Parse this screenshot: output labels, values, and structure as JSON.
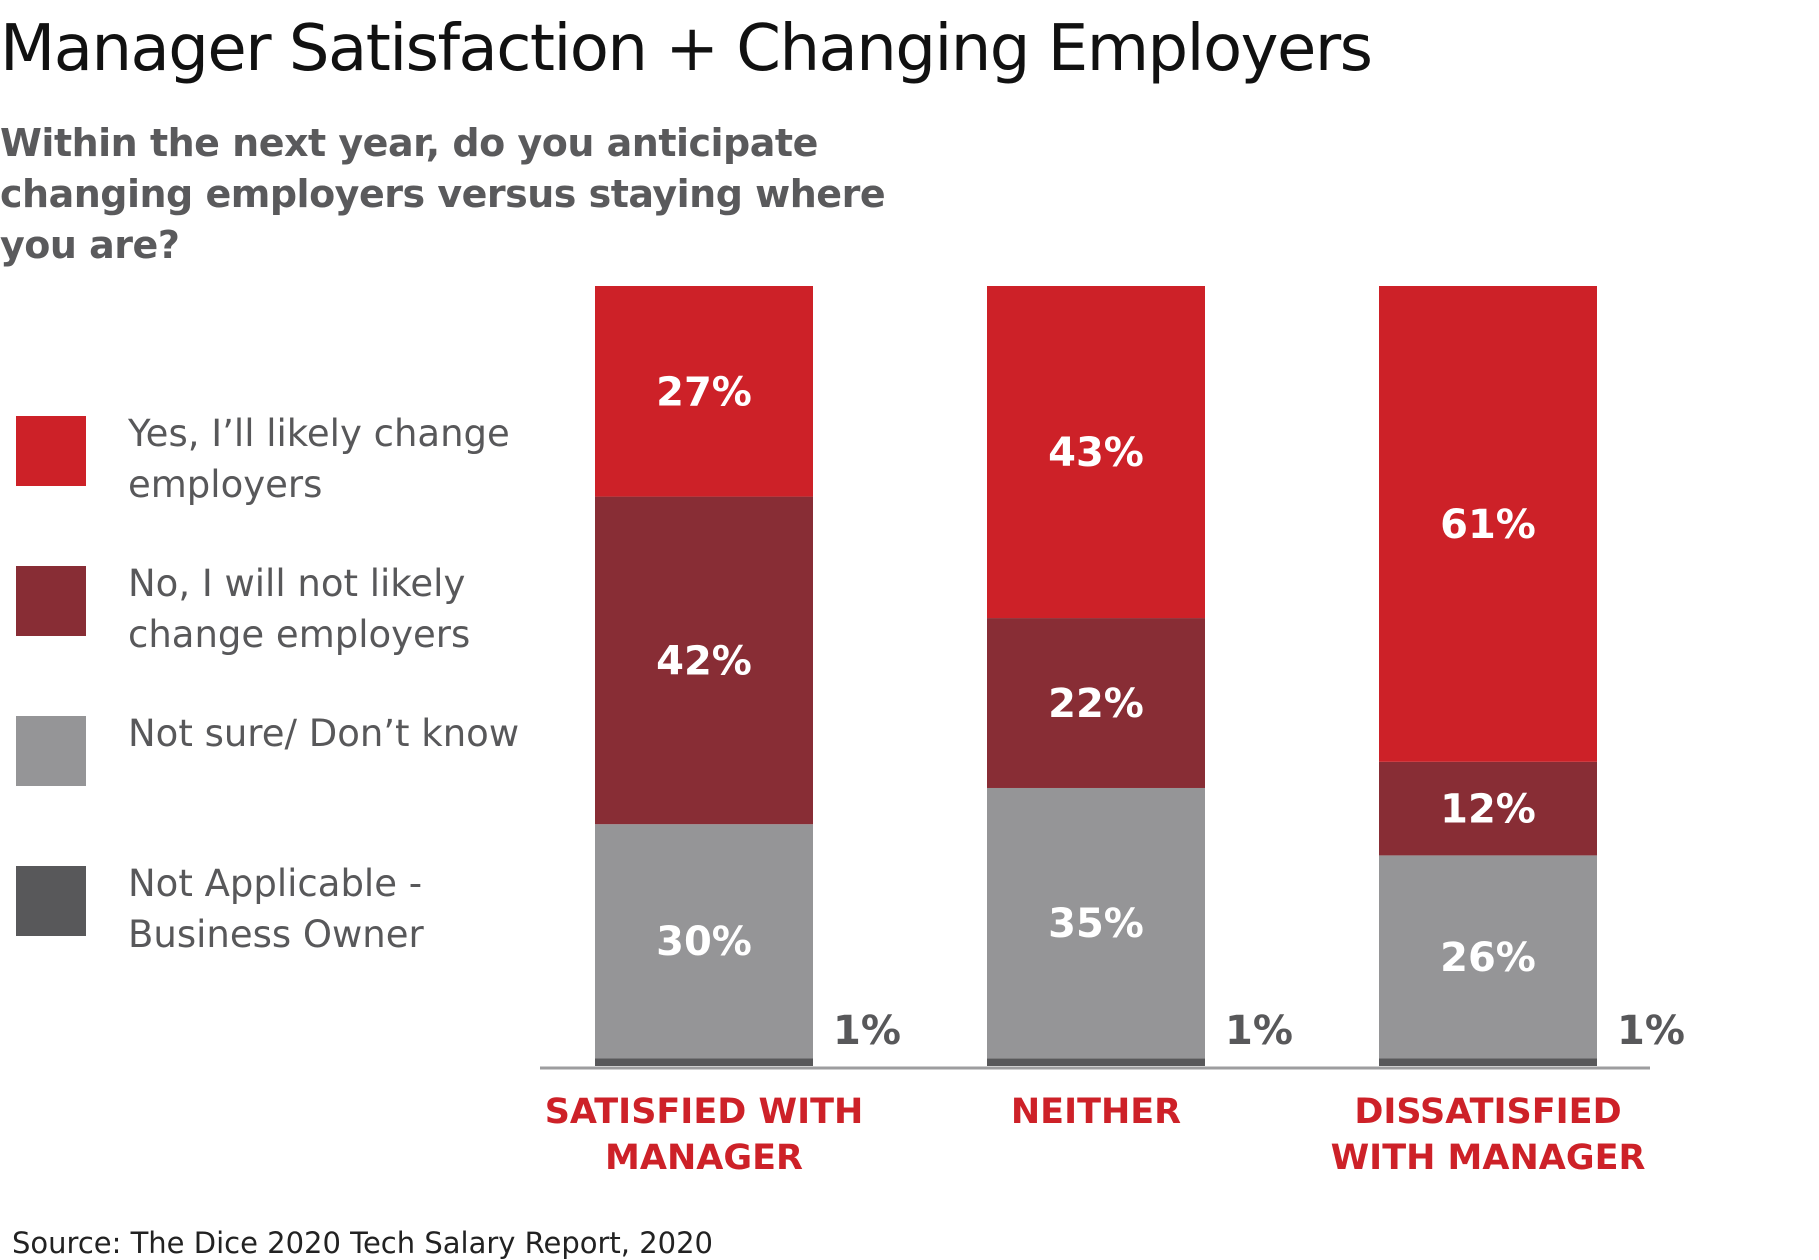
{
  "title": "Manager Satisfaction + Changing Employers",
  "subtitle": "Within the next year, do you anticipate changing employers versus staying where you are?",
  "source": "Source: The Dice 2020 Tech Salary Report, 2020",
  "colors": {
    "yes": "#cd2128",
    "no": "#882d35",
    "not_sure": "#959597",
    "not_applicable": "#58585a",
    "category_label": "#cd2128",
    "baseline": "#9d9d9f"
  },
  "legend": [
    {
      "label": "Yes, I’ll likely change employers",
      "color": "#cd2128"
    },
    {
      "label": "No, I will not likely change employers",
      "color": "#882d35"
    },
    {
      "label": "Not sure/ Don’t know",
      "color": "#959597"
    },
    {
      "label": "Not Applicable - Business Owner",
      "color": "#58585a"
    }
  ],
  "chart_data": {
    "type": "bar",
    "stacked": true,
    "categories": [
      "SATISFIED WITH MANAGER",
      "NEITHER",
      "DISSATISFIED WITH MANAGER"
    ],
    "series": [
      {
        "name": "Not Applicable - Business Owner",
        "values": [
          1,
          1,
          1
        ],
        "labels": [
          "1%",
          "1%",
          "1%"
        ]
      },
      {
        "name": "Not sure/ Don’t know",
        "values": [
          30,
          35,
          26
        ],
        "labels": [
          "30%",
          "35%",
          "26%"
        ]
      },
      {
        "name": "No, I will not likely change employers",
        "values": [
          42,
          22,
          12
        ],
        "labels": [
          "42%",
          "22%",
          "12%"
        ]
      },
      {
        "name": "Yes, I’ll likely change employers",
        "values": [
          27,
          43,
          61
        ],
        "labels": [
          "27%",
          "43%",
          "61%"
        ]
      }
    ],
    "ylim": [
      0,
      100
    ],
    "grid": false,
    "legend_position": "left"
  }
}
